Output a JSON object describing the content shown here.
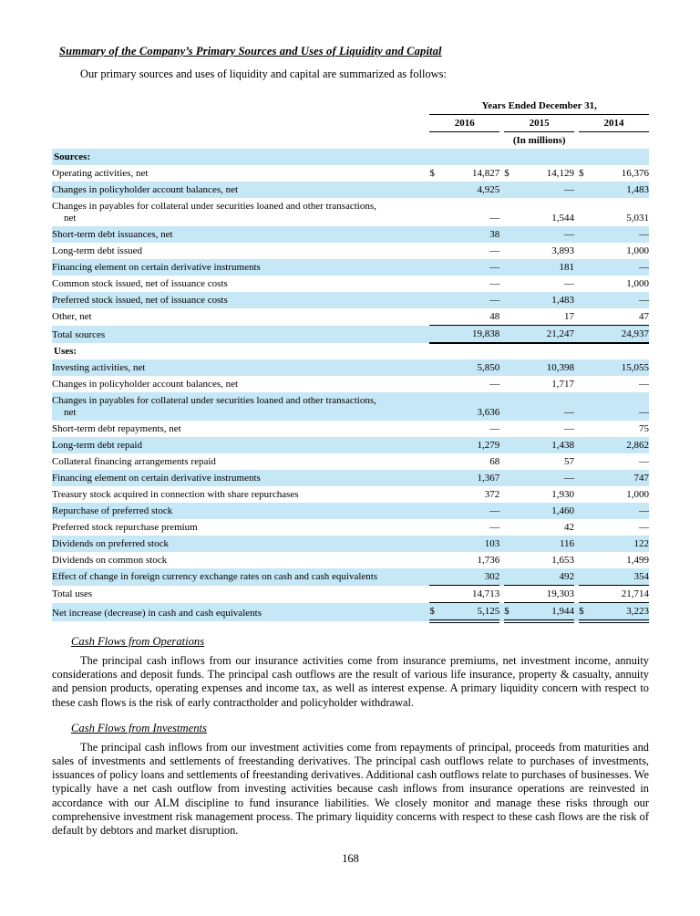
{
  "page": {
    "title": "Summary of the Company’s Primary Sources and Uses of Liquidity and Capital",
    "intro": "Our primary sources and uses of liquidity and capital are summarized as follows:",
    "footer_page_number": "168"
  },
  "colors": {
    "row_highlight": "#c6e7f5"
  },
  "table": {
    "header": {
      "years_ended": "Years Ended December 31,",
      "years": [
        "2016",
        "2015",
        "2014"
      ],
      "units": "(In millions)"
    },
    "rows": [
      {
        "type": "section",
        "label": "Sources:"
      },
      {
        "type": "item",
        "label": "Operating activities, net",
        "dollar": true,
        "values": [
          "14,827",
          "14,129",
          "16,376"
        ]
      },
      {
        "type": "item",
        "label": "Changes in policyholder account balances, net",
        "values": [
          "4,925",
          "—",
          "1,483"
        ]
      },
      {
        "type": "item2",
        "label": "Changes in payables for collateral under securities loaned and other transactions,",
        "label2": "net",
        "values": [
          "—",
          "1,544",
          "5,031"
        ]
      },
      {
        "type": "item",
        "label": "Short-term debt issuances, net",
        "values": [
          "38",
          "—",
          "—"
        ]
      },
      {
        "type": "item",
        "label": "Long-term debt issued",
        "values": [
          "—",
          "3,893",
          "1,000"
        ]
      },
      {
        "type": "item",
        "label": "Financing element on certain derivative instruments",
        "values": [
          "—",
          "181",
          "—"
        ]
      },
      {
        "type": "item",
        "label": "Common stock issued, net of issuance costs",
        "values": [
          "—",
          "—",
          "1,000"
        ]
      },
      {
        "type": "item",
        "label": "Preferred stock issued, net of issuance costs",
        "values": [
          "—",
          "1,483",
          "—"
        ]
      },
      {
        "type": "item",
        "label": "Other, net",
        "values": [
          "48",
          "17",
          "47"
        ]
      },
      {
        "type": "total-sources",
        "label": "Total sources",
        "values": [
          "19,838",
          "21,247",
          "24,937"
        ]
      },
      {
        "type": "section",
        "label": "Uses:"
      },
      {
        "type": "item",
        "label": "Investing activities, net",
        "values": [
          "5,850",
          "10,398",
          "15,055"
        ]
      },
      {
        "type": "item",
        "label": "Changes in policyholder account balances, net",
        "values": [
          "—",
          "1,717",
          "—"
        ]
      },
      {
        "type": "item2",
        "label": "Changes in payables for collateral under securities loaned and other transactions,",
        "label2": "net",
        "values": [
          "3,636",
          "—",
          "—"
        ]
      },
      {
        "type": "item",
        "label": "Short-term debt repayments, net",
        "values": [
          "—",
          "—",
          "75"
        ]
      },
      {
        "type": "item",
        "label": "Long-term debt repaid",
        "values": [
          "1,279",
          "1,438",
          "2,862"
        ]
      },
      {
        "type": "item",
        "label": "Collateral financing arrangements repaid",
        "values": [
          "68",
          "57",
          "—"
        ]
      },
      {
        "type": "item",
        "label": "Financing element on certain derivative instruments",
        "values": [
          "1,367",
          "—",
          "747"
        ]
      },
      {
        "type": "item",
        "label": "Treasury stock acquired in connection with share repurchases",
        "values": [
          "372",
          "1,930",
          "1,000"
        ]
      },
      {
        "type": "item",
        "label": "Repurchase of preferred stock",
        "values": [
          "—",
          "1,460",
          "—"
        ]
      },
      {
        "type": "item",
        "label": "Preferred stock repurchase premium",
        "values": [
          "—",
          "42",
          "—"
        ]
      },
      {
        "type": "item",
        "label": "Dividends on preferred stock",
        "values": [
          "103",
          "116",
          "122"
        ]
      },
      {
        "type": "item",
        "label": "Dividends on common stock",
        "values": [
          "1,736",
          "1,653",
          "1,499"
        ]
      },
      {
        "type": "item",
        "label": "Effect of change in foreign currency exchange rates on cash and cash equivalents",
        "values": [
          "302",
          "492",
          "354"
        ]
      },
      {
        "type": "total-uses",
        "label": "Total uses",
        "values": [
          "14,713",
          "19,303",
          "21,714"
        ]
      },
      {
        "type": "net",
        "label": "Net increase (decrease) in cash and cash equivalents",
        "dollar": true,
        "values": [
          "5,125",
          "1,944",
          "3,223"
        ]
      }
    ]
  },
  "sections": [
    {
      "heading": "Cash Flows from Operations",
      "body": "The principal cash inflows from our insurance activities come from insurance premiums, net investment income, annuity considerations and deposit funds. The principal cash outflows are the result of various life insurance, property & casualty, annuity and pension products, operating expenses and income tax, as well as interest expense. A primary liquidity concern with respect to these cash flows is the risk of early contractholder and policyholder withdrawal."
    },
    {
      "heading": "Cash Flows from Investments",
      "body": "The principal cash inflows from our investment activities come from repayments of principal, proceeds from maturities and sales of investments and settlements of freestanding derivatives. The principal cash outflows relate to purchases of investments, issuances of policy loans and settlements of freestanding derivatives. Additional cash outflows relate to purchases of businesses. We typically have a net cash outflow from investing activities because cash inflows from insurance operations are reinvested in accordance with our ALM discipline to fund insurance liabilities. We closely monitor and manage these risks through our comprehensive investment risk management process. The primary liquidity concerns with respect to these cash flows are the risk of default by debtors and market disruption."
    }
  ]
}
